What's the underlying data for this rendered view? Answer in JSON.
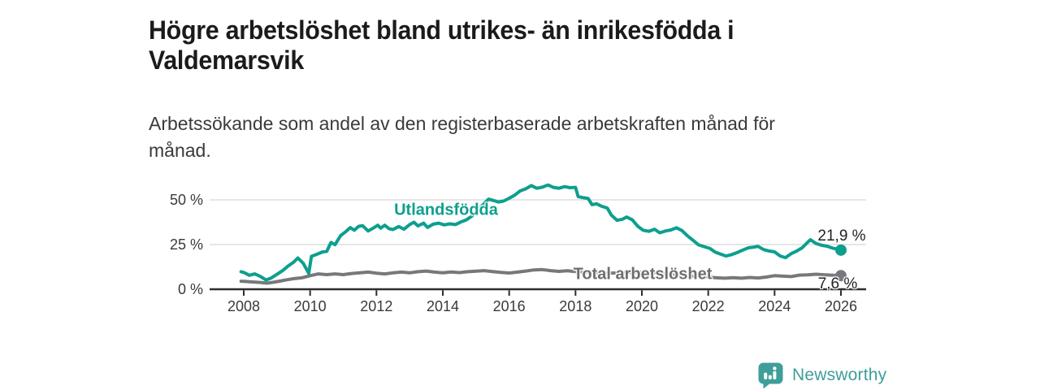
{
  "header": {
    "title": "Högre arbetslöshet bland utrikes- än inrikesfödda i\nValdemarsvik",
    "subtitle": "Arbetssökande som andel av den registerbaserade arbetskraften månad för\nmånad."
  },
  "footer": {
    "brand": "Newsworthy",
    "logo_icon": "newsworthy-speech-bubble-bar-chart"
  },
  "colors": {
    "accent_teal": "#0d9f8e",
    "line_gray": "#77787b",
    "label_gray": "#6d6e71",
    "logo_teal": "#3f9e9a",
    "grid": "#d8d8d8",
    "axis": "#2d2d2d",
    "text": "#3a3a3a",
    "title_text": "#1b1b1b"
  },
  "chart_data": {
    "type": "line",
    "title": "Högre arbetslöshet bland utrikes- än inrikesfödda i Valdemarsvik",
    "subtitle": "Arbetssökande som andel av den registerbaserade arbetskraften månad för månad.",
    "xlabel": "",
    "ylabel": "",
    "x_range": [
      2007.0,
      2026.8
    ],
    "ylim": [
      0,
      60
    ],
    "grid": "horizontal-only",
    "legend": "inline-labels",
    "y_ticks": [
      {
        "value": 0,
        "label": "0 %"
      },
      {
        "value": 25,
        "label": "25 %"
      },
      {
        "value": 50,
        "label": "50 %"
      }
    ],
    "x_ticks": [
      {
        "value": 2008,
        "label": "2008"
      },
      {
        "value": 2010,
        "label": "2010"
      },
      {
        "value": 2012,
        "label": "2012"
      },
      {
        "value": 2014,
        "label": "2014"
      },
      {
        "value": 2016,
        "label": "2016"
      },
      {
        "value": 2018,
        "label": "2018"
      },
      {
        "value": 2020,
        "label": "2020"
      },
      {
        "value": 2022,
        "label": "2022"
      },
      {
        "value": 2024,
        "label": "2024"
      },
      {
        "value": 2026,
        "label": "2026"
      }
    ],
    "series": [
      {
        "name": "Utlandsfödda",
        "color": "#0d9f8e",
        "end_value": 21.9,
        "end_label": "21,9 %",
        "points": [
          [
            2007.92,
            9.8
          ],
          [
            2008.0,
            9.4
          ],
          [
            2008.17,
            7.8
          ],
          [
            2008.33,
            8.6
          ],
          [
            2008.5,
            7.2
          ],
          [
            2008.67,
            5.2
          ],
          [
            2008.83,
            6.3
          ],
          [
            2009.0,
            8.3
          ],
          [
            2009.17,
            10.4
          ],
          [
            2009.33,
            12.9
          ],
          [
            2009.5,
            15.1
          ],
          [
            2009.63,
            17.5
          ],
          [
            2009.79,
            14.6
          ],
          [
            2009.96,
            8.9
          ],
          [
            2010.04,
            18.4
          ],
          [
            2010.21,
            19.6
          ],
          [
            2010.38,
            20.9
          ],
          [
            2010.5,
            21.2
          ],
          [
            2010.63,
            26.2
          ],
          [
            2010.75,
            24.9
          ],
          [
            2010.92,
            30.0
          ],
          [
            2011.08,
            32.3
          ],
          [
            2011.21,
            34.5
          ],
          [
            2011.33,
            33.0
          ],
          [
            2011.46,
            35.2
          ],
          [
            2011.58,
            35.6
          ],
          [
            2011.75,
            32.6
          ],
          [
            2011.92,
            34.4
          ],
          [
            2012.04,
            35.8
          ],
          [
            2012.13,
            34.2
          ],
          [
            2012.25,
            35.8
          ],
          [
            2012.38,
            33.9
          ],
          [
            2012.5,
            33.4
          ],
          [
            2012.67,
            35.1
          ],
          [
            2012.83,
            33.6
          ],
          [
            2013.0,
            36.2
          ],
          [
            2013.13,
            37.5
          ],
          [
            2013.25,
            35.4
          ],
          [
            2013.42,
            37.0
          ],
          [
            2013.54,
            34.6
          ],
          [
            2013.71,
            36.4
          ],
          [
            2013.88,
            37.0
          ],
          [
            2014.04,
            36.0
          ],
          [
            2014.21,
            36.6
          ],
          [
            2014.38,
            36.2
          ],
          [
            2014.54,
            37.6
          ],
          [
            2014.71,
            38.8
          ],
          [
            2014.88,
            41.0
          ],
          [
            2015.04,
            44.0
          ],
          [
            2015.17,
            46.6
          ],
          [
            2015.25,
            48.0
          ],
          [
            2015.38,
            50.4
          ],
          [
            2015.54,
            49.6
          ],
          [
            2015.67,
            48.8
          ],
          [
            2015.83,
            49.3
          ],
          [
            2016.0,
            50.9
          ],
          [
            2016.17,
            52.7
          ],
          [
            2016.33,
            55.0
          ],
          [
            2016.5,
            56.2
          ],
          [
            2016.67,
            58.0
          ],
          [
            2016.83,
            56.5
          ],
          [
            2017.0,
            57.1
          ],
          [
            2017.17,
            58.3
          ],
          [
            2017.33,
            57.0
          ],
          [
            2017.5,
            56.5
          ],
          [
            2017.67,
            57.4
          ],
          [
            2017.83,
            56.8
          ],
          [
            2018.0,
            57.0
          ],
          [
            2018.08,
            51.8
          ],
          [
            2018.25,
            51.2
          ],
          [
            2018.38,
            50.8
          ],
          [
            2018.5,
            47.3
          ],
          [
            2018.63,
            47.8
          ],
          [
            2018.79,
            46.4
          ],
          [
            2018.96,
            45.4
          ],
          [
            2019.08,
            41.5
          ],
          [
            2019.25,
            38.6
          ],
          [
            2019.42,
            39.2
          ],
          [
            2019.54,
            40.4
          ],
          [
            2019.71,
            38.8
          ],
          [
            2019.88,
            35.2
          ],
          [
            2020.04,
            33.0
          ],
          [
            2020.21,
            32.4
          ],
          [
            2020.38,
            33.6
          ],
          [
            2020.54,
            31.6
          ],
          [
            2020.71,
            32.6
          ],
          [
            2020.88,
            33.2
          ],
          [
            2021.04,
            34.4
          ],
          [
            2021.21,
            32.8
          ],
          [
            2021.38,
            29.8
          ],
          [
            2021.54,
            27.4
          ],
          [
            2021.71,
            24.8
          ],
          [
            2021.88,
            23.8
          ],
          [
            2022.04,
            22.9
          ],
          [
            2022.21,
            20.8
          ],
          [
            2022.38,
            19.6
          ],
          [
            2022.54,
            18.6
          ],
          [
            2022.71,
            19.4
          ],
          [
            2022.88,
            20.6
          ],
          [
            2023.04,
            21.9
          ],
          [
            2023.21,
            23.2
          ],
          [
            2023.38,
            23.6
          ],
          [
            2023.5,
            24.0
          ],
          [
            2023.67,
            22.2
          ],
          [
            2023.83,
            21.4
          ],
          [
            2024.0,
            20.9
          ],
          [
            2024.17,
            18.6
          ],
          [
            2024.33,
            17.7
          ],
          [
            2024.5,
            19.9
          ],
          [
            2024.67,
            21.4
          ],
          [
            2024.83,
            23.2
          ],
          [
            2025.0,
            26.3
          ],
          [
            2025.08,
            27.7
          ],
          [
            2025.25,
            25.6
          ],
          [
            2025.42,
            24.6
          ],
          [
            2025.58,
            24.1
          ],
          [
            2025.75,
            23.0
          ],
          [
            2025.92,
            22.3
          ],
          [
            2026.0,
            21.9
          ]
        ]
      },
      {
        "name": "Total arbetslöshet",
        "color": "#77787b",
        "end_value": 7.6,
        "end_label": "7,6 %",
        "points": [
          [
            2007.92,
            4.5
          ],
          [
            2008.0,
            4.4
          ],
          [
            2008.25,
            4.1
          ],
          [
            2008.5,
            3.8
          ],
          [
            2008.7,
            3.4
          ],
          [
            2008.9,
            3.9
          ],
          [
            2009.1,
            4.6
          ],
          [
            2009.3,
            5.3
          ],
          [
            2009.5,
            5.9
          ],
          [
            2009.75,
            6.4
          ],
          [
            2010.0,
            7.6
          ],
          [
            2010.25,
            8.6
          ],
          [
            2010.5,
            8.2
          ],
          [
            2010.75,
            8.6
          ],
          [
            2011.0,
            8.2
          ],
          [
            2011.25,
            8.8
          ],
          [
            2011.5,
            9.2
          ],
          [
            2011.75,
            9.6
          ],
          [
            2012.0,
            9.0
          ],
          [
            2012.25,
            8.6
          ],
          [
            2012.5,
            9.2
          ],
          [
            2012.75,
            9.6
          ],
          [
            2013.0,
            9.2
          ],
          [
            2013.25,
            9.8
          ],
          [
            2013.5,
            10.2
          ],
          [
            2013.75,
            9.6
          ],
          [
            2014.0,
            9.2
          ],
          [
            2014.25,
            9.7
          ],
          [
            2014.5,
            9.3
          ],
          [
            2014.75,
            9.8
          ],
          [
            2015.0,
            10.1
          ],
          [
            2015.25,
            10.4
          ],
          [
            2015.5,
            9.9
          ],
          [
            2015.75,
            9.4
          ],
          [
            2016.0,
            9.1
          ],
          [
            2016.25,
            9.6
          ],
          [
            2016.5,
            10.2
          ],
          [
            2016.75,
            10.8
          ],
          [
            2017.0,
            11.0
          ],
          [
            2017.25,
            10.4
          ],
          [
            2017.5,
            10.0
          ],
          [
            2017.75,
            10.3
          ],
          [
            2018.0,
            9.9
          ],
          [
            2018.5,
            9.4
          ],
          [
            2019.0,
            9.0
          ],
          [
            2019.5,
            9.3
          ],
          [
            2020.0,
            9.6
          ],
          [
            2020.5,
            9.1
          ],
          [
            2021.0,
            8.2
          ],
          [
            2021.5,
            7.4
          ],
          [
            2022.0,
            6.8
          ],
          [
            2022.25,
            6.4
          ],
          [
            2022.5,
            6.2
          ],
          [
            2022.75,
            6.5
          ],
          [
            2023.0,
            6.2
          ],
          [
            2023.25,
            6.6
          ],
          [
            2023.5,
            6.3
          ],
          [
            2023.75,
            6.8
          ],
          [
            2024.0,
            7.6
          ],
          [
            2024.25,
            7.3
          ],
          [
            2024.5,
            7.1
          ],
          [
            2024.75,
            7.9
          ],
          [
            2025.0,
            8.1
          ],
          [
            2025.25,
            8.4
          ],
          [
            2025.5,
            8.1
          ],
          [
            2025.75,
            7.8
          ],
          [
            2026.0,
            7.6
          ]
        ]
      }
    ]
  }
}
